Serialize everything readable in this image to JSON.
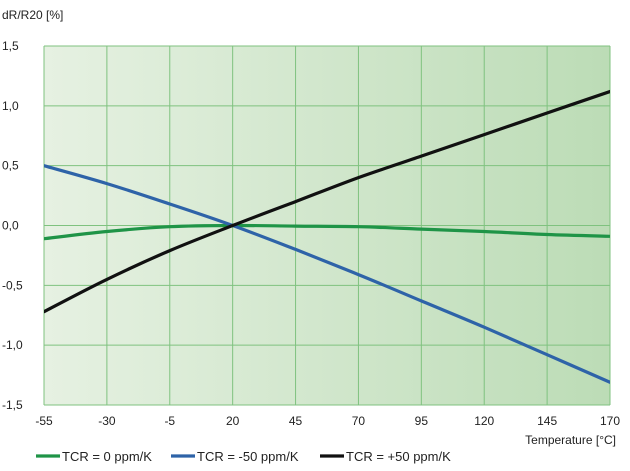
{
  "chart_data": {
    "type": "line",
    "ylabel": "dR/R20 [%]",
    "xlabel": "Temperature [°C]",
    "xlim": [
      -55,
      170
    ],
    "ylim": [
      -1.5,
      1.5
    ],
    "x_ticks": [
      -55,
      -30,
      -5,
      20,
      45,
      70,
      95,
      120,
      145,
      170
    ],
    "x_tick_labels": [
      "-55",
      "-30",
      "-5",
      "20",
      "45",
      "70",
      "95",
      "120",
      "145",
      "170"
    ],
    "y_ticks": [
      -1.5,
      -1.0,
      -0.5,
      0.0,
      0.5,
      1.0,
      1.5
    ],
    "y_tick_labels": [
      "-1,5",
      "-1,0",
      "-0,5",
      "0,0",
      "0,5",
      "1,0",
      "1,5"
    ],
    "grid": true,
    "legend_position": "bottom",
    "background": "green gradient, light at left to darker at right",
    "colors": {
      "grid": "#7fc27f",
      "bg_start": "#e6f1e2",
      "bg_end": "#bcdcb6"
    },
    "series": [
      {
        "name": "TCR = 0 ppm/K",
        "color": "#1f9447",
        "x": [
          -55,
          -30,
          -5,
          20,
          45,
          70,
          95,
          120,
          145,
          170
        ],
        "y": [
          -0.11,
          -0.05,
          -0.01,
          0.0,
          -0.005,
          -0.01,
          -0.03,
          -0.05,
          -0.075,
          -0.09
        ]
      },
      {
        "name": "TCR =  -50 ppm/K",
        "color": "#2e63a8",
        "x": [
          -55,
          -30,
          -5,
          20,
          45,
          70,
          95,
          120,
          145,
          170
        ],
        "y": [
          0.5,
          0.35,
          0.18,
          0.0,
          -0.2,
          -0.41,
          -0.63,
          -0.85,
          -1.08,
          -1.31
        ]
      },
      {
        "name": "TCR = +50 ppm/K",
        "color": "#111111",
        "x": [
          -55,
          -30,
          -5,
          20,
          45,
          70,
          95,
          120,
          145,
          170
        ],
        "y": [
          -0.72,
          -0.45,
          -0.21,
          0.0,
          0.2,
          0.4,
          0.58,
          0.76,
          0.94,
          1.12
        ]
      }
    ]
  }
}
